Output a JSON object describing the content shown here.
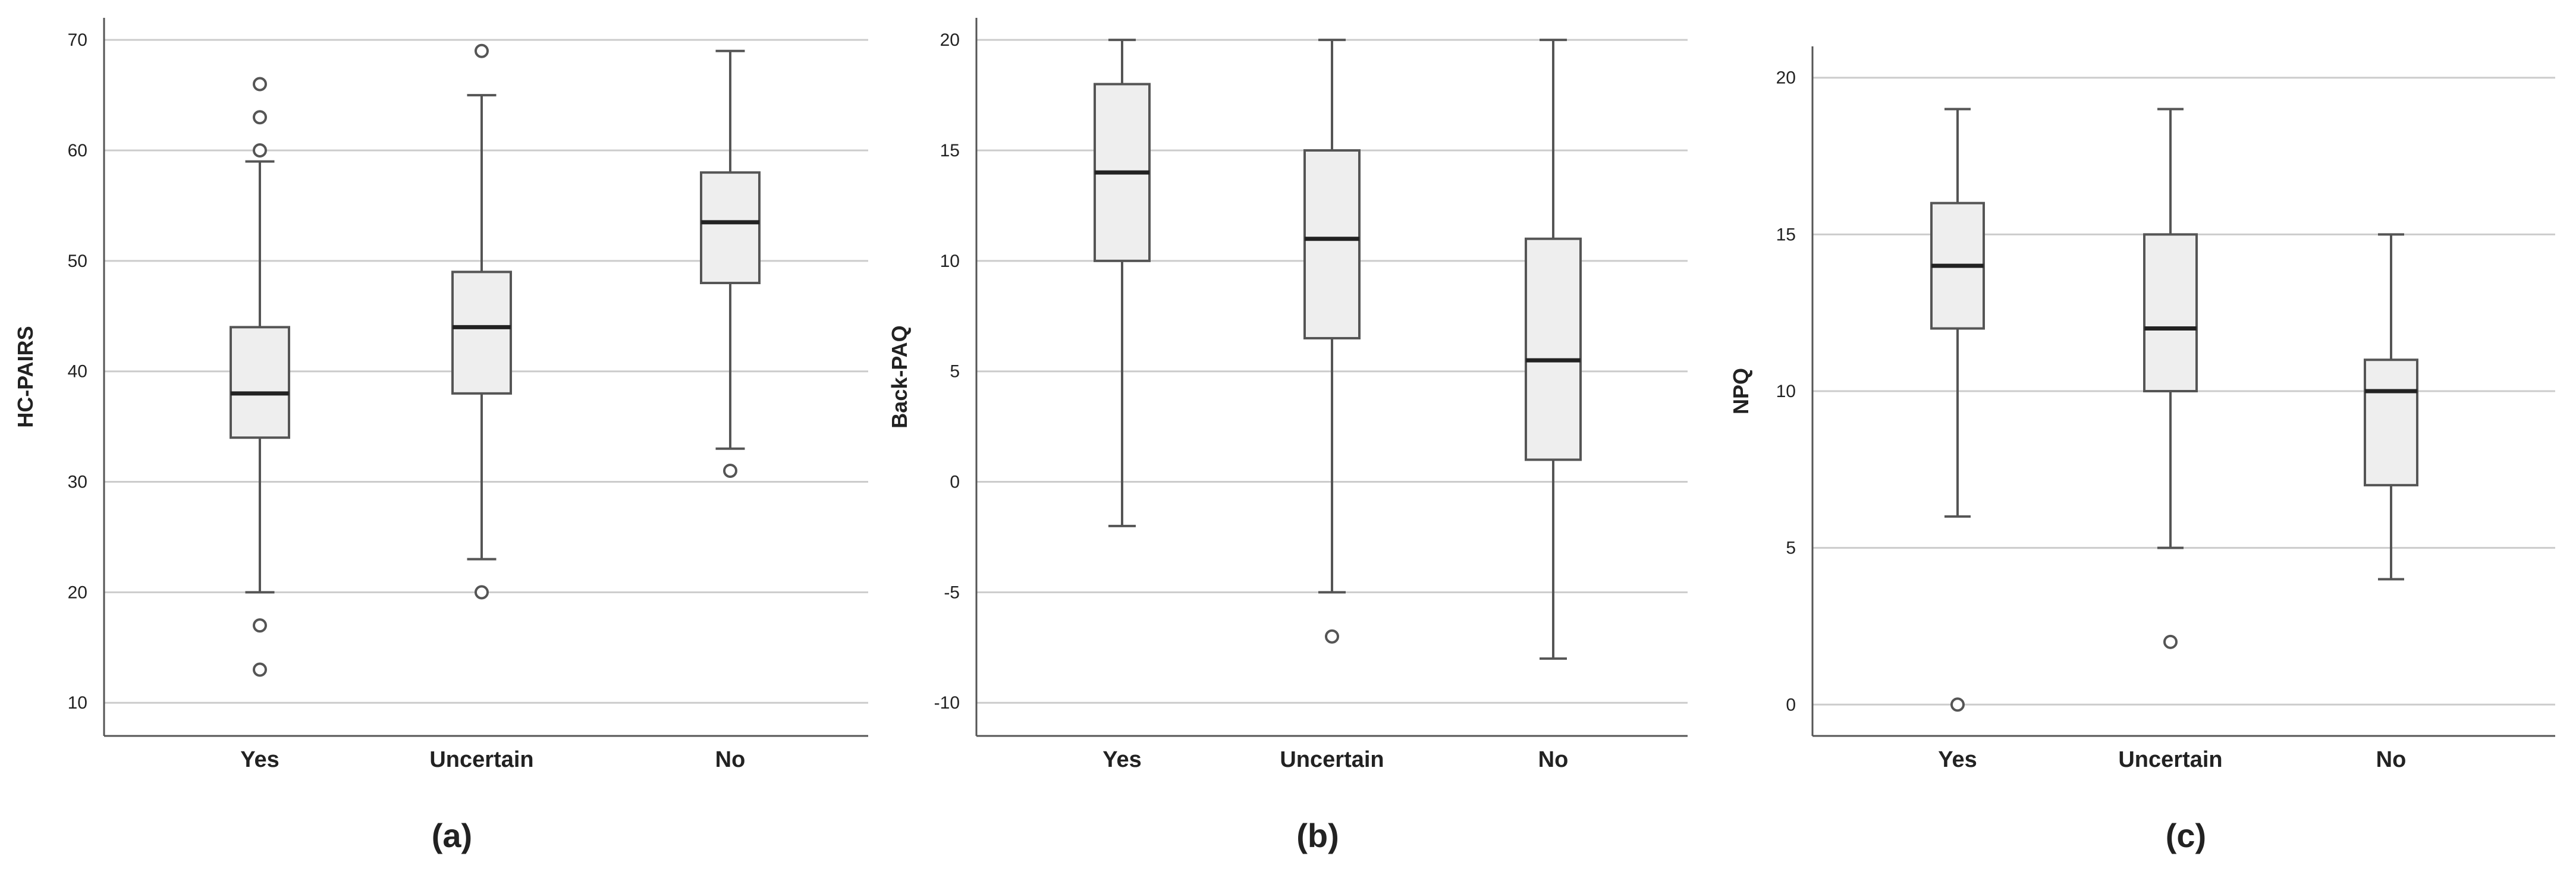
{
  "chart_data": [
    {
      "type": "box",
      "panel_label": "(a)",
      "ylabel": "HC-PAIRS",
      "ylim": [
        7,
        72
      ],
      "yticks": [
        10,
        20,
        30,
        40,
        50,
        60,
        70
      ],
      "ytick_labels": [
        "10",
        "20",
        "30",
        "40",
        "50",
        "60",
        "70"
      ],
      "grid": "horizontal",
      "categories": [
        "Yes",
        "Uncertain",
        "No"
      ],
      "boxes": [
        {
          "whisker_low": 20,
          "q1": 34,
          "median": 38,
          "q3": 44,
          "whisker_high": 59,
          "outliers": [
            13,
            17,
            60,
            63,
            66
          ]
        },
        {
          "whisker_low": 23,
          "q1": 38,
          "median": 44,
          "q3": 49,
          "whisker_high": 65,
          "outliers": [
            20,
            69
          ]
        },
        {
          "whisker_low": 33,
          "q1": 48,
          "median": 53.5,
          "q3": 58,
          "whisker_high": 69,
          "outliers": [
            31
          ]
        }
      ]
    },
    {
      "type": "box",
      "panel_label": "(b)",
      "ylabel": "Back-PAQ",
      "ylim": [
        -11.5,
        21
      ],
      "yticks": [
        -10,
        -5,
        0,
        5,
        10,
        15,
        20
      ],
      "ytick_labels": [
        "-10",
        "-5",
        "0",
        "5",
        "10",
        "15",
        "20"
      ],
      "grid": "horizontal",
      "categories": [
        "Yes",
        "Uncertain",
        "No"
      ],
      "boxes": [
        {
          "whisker_low": -2,
          "q1": 10,
          "median": 14,
          "q3": 18,
          "whisker_high": 20,
          "outliers": []
        },
        {
          "whisker_low": -5,
          "q1": 6.5,
          "median": 11,
          "q3": 15,
          "whisker_high": 20,
          "outliers": [
            -7
          ]
        },
        {
          "whisker_low": -8,
          "q1": 1,
          "median": 5.5,
          "q3": 11,
          "whisker_high": 20,
          "outliers": []
        }
      ]
    },
    {
      "type": "box",
      "panel_label": "(c)",
      "ylabel": "NPQ",
      "ylim": [
        -1,
        21
      ],
      "yticks": [
        0,
        5,
        10,
        15,
        20
      ],
      "ytick_labels": [
        "0",
        "5",
        "10",
        "15",
        "20"
      ],
      "grid": "horizontal",
      "categories": [
        "Yes",
        "Uncertain",
        "No"
      ],
      "boxes": [
        {
          "whisker_low": 6,
          "q1": 12,
          "median": 14,
          "q3": 16,
          "whisker_high": 19,
          "outliers": [
            0
          ]
        },
        {
          "whisker_low": 5,
          "q1": 10,
          "median": 12,
          "q3": 15,
          "whisker_high": 19,
          "outliers": [
            2
          ]
        },
        {
          "whisker_low": 4,
          "q1": 7,
          "median": 10,
          "q3": 11,
          "whisker_high": 15,
          "outliers": []
        }
      ]
    }
  ],
  "colors": {
    "box_fill": "#eeeeee",
    "stroke": "#555555",
    "median": "#222222",
    "grid": "#cccccc",
    "text": "#222222"
  }
}
